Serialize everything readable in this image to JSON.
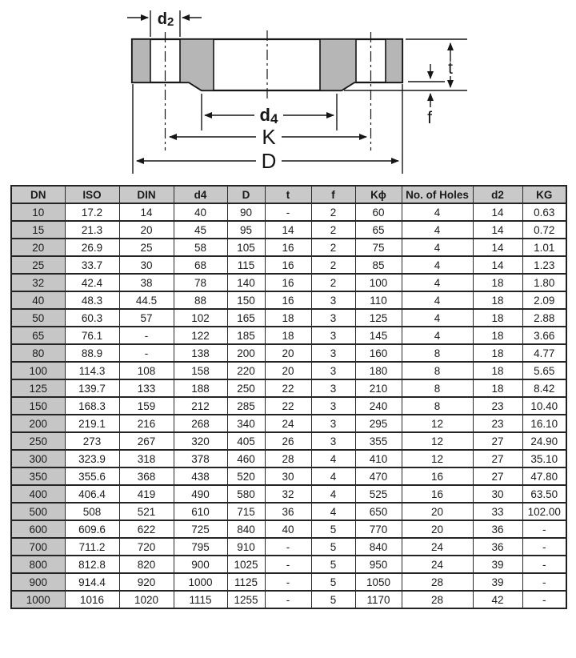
{
  "diagram": {
    "labels": {
      "d2_letter": "d",
      "d2_sub": "2",
      "d4_letter": "d",
      "d4_sub": "4",
      "k": "K",
      "d_outer": "D",
      "t": "t",
      "f": "f"
    },
    "colors": {
      "metal_fill": "#b6b6b6",
      "line": "#161616"
    }
  },
  "table": {
    "headers": [
      "DN",
      "ISO",
      "DIN",
      "d4",
      "D",
      "t",
      "f",
      "Kϕ",
      "No. of Holes",
      "d2",
      "KG"
    ],
    "rows": [
      [
        "10",
        "17.2",
        "14",
        "40",
        "90",
        "-",
        "2",
        "60",
        "4",
        "14",
        "0.63"
      ],
      [
        "15",
        "21.3",
        "20",
        "45",
        "95",
        "14",
        "2",
        "65",
        "4",
        "14",
        "0.72"
      ],
      [
        "20",
        "26.9",
        "25",
        "58",
        "105",
        "16",
        "2",
        "75",
        "4",
        "14",
        "1.01"
      ],
      [
        "25",
        "33.7",
        "30",
        "68",
        "115",
        "16",
        "2",
        "85",
        "4",
        "14",
        "1.23"
      ],
      [
        "32",
        "42.4",
        "38",
        "78",
        "140",
        "16",
        "2",
        "100",
        "4",
        "18",
        "1.80"
      ],
      [
        "40",
        "48.3",
        "44.5",
        "88",
        "150",
        "16",
        "3",
        "110",
        "4",
        "18",
        "2.09"
      ],
      [
        "50",
        "60.3",
        "57",
        "102",
        "165",
        "18",
        "3",
        "125",
        "4",
        "18",
        "2.88"
      ],
      [
        "65",
        "76.1",
        "-",
        "122",
        "185",
        "18",
        "3",
        "145",
        "4",
        "18",
        "3.66"
      ],
      [
        "80",
        "88.9",
        "-",
        "138",
        "200",
        "20",
        "3",
        "160",
        "8",
        "18",
        "4.77"
      ],
      [
        "100",
        "114.3",
        "108",
        "158",
        "220",
        "20",
        "3",
        "180",
        "8",
        "18",
        "5.65"
      ],
      [
        "125",
        "139.7",
        "133",
        "188",
        "250",
        "22",
        "3",
        "210",
        "8",
        "18",
        "8.42"
      ],
      [
        "150",
        "168.3",
        "159",
        "212",
        "285",
        "22",
        "3",
        "240",
        "8",
        "23",
        "10.40"
      ],
      [
        "200",
        "219.1",
        "216",
        "268",
        "340",
        "24",
        "3",
        "295",
        "12",
        "23",
        "16.10"
      ],
      [
        "250",
        "273",
        "267",
        "320",
        "405",
        "26",
        "3",
        "355",
        "12",
        "27",
        "24.90"
      ],
      [
        "300",
        "323.9",
        "318",
        "378",
        "460",
        "28",
        "4",
        "410",
        "12",
        "27",
        "35.10"
      ],
      [
        "350",
        "355.6",
        "368",
        "438",
        "520",
        "30",
        "4",
        "470",
        "16",
        "27",
        "47.80"
      ],
      [
        "400",
        "406.4",
        "419",
        "490",
        "580",
        "32",
        "4",
        "525",
        "16",
        "30",
        "63.50"
      ],
      [
        "500",
        "508",
        "521",
        "610",
        "715",
        "36",
        "4",
        "650",
        "20",
        "33",
        "102.00"
      ],
      [
        "600",
        "609.6",
        "622",
        "725",
        "840",
        "40",
        "5",
        "770",
        "20",
        "36",
        "-"
      ],
      [
        "700",
        "711.2",
        "720",
        "795",
        "910",
        "-",
        "5",
        "840",
        "24",
        "36",
        "-"
      ],
      [
        "800",
        "812.8",
        "820",
        "900",
        "1025",
        "-",
        "5",
        "950",
        "24",
        "39",
        "-"
      ],
      [
        "900",
        "914.4",
        "920",
        "1000",
        "1125",
        "-",
        "5",
        "1050",
        "28",
        "39",
        "-"
      ],
      [
        "1000",
        "1016",
        "1020",
        "1115",
        "1255",
        "-",
        "5",
        "1170",
        "28",
        "42",
        "-"
      ]
    ]
  }
}
